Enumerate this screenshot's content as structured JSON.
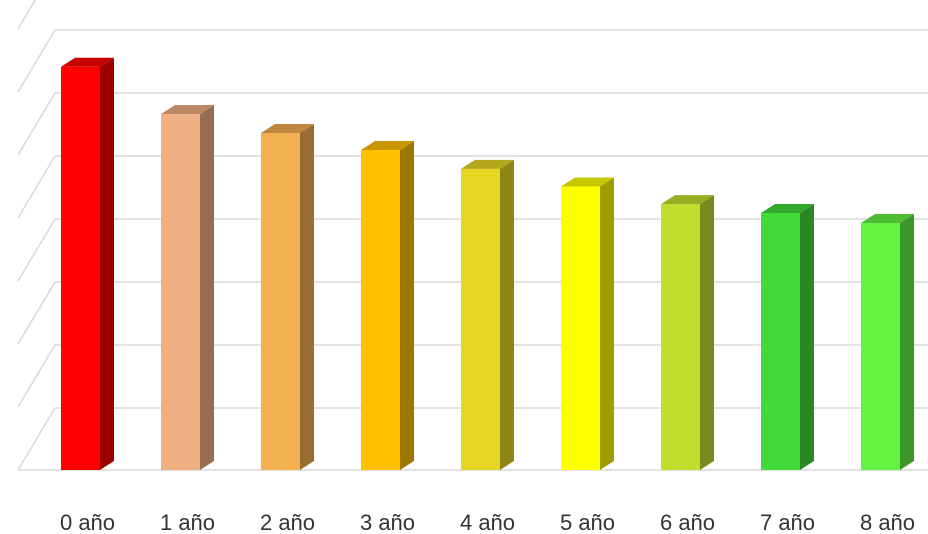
{
  "chart_data": {
    "type": "bar",
    "title": "",
    "xlabel": "",
    "ylabel": "",
    "categories": [
      "0 año",
      "1 año",
      "2 año",
      "3 año",
      "4 año",
      "5 año",
      "6 año",
      "7 año",
      "8 año"
    ],
    "values": [
      6.4,
      5.65,
      5.35,
      5.08,
      4.78,
      4.5,
      4.22,
      4.08,
      3.92
    ],
    "ylim": [
      0,
      7
    ],
    "grid": true,
    "legend": "none",
    "bar_colors": [
      "#ff0000",
      "#f0b083",
      "#f3b050",
      "#ffc000",
      "#e6d624",
      "#ffff00",
      "#c2de2c",
      "#42d93a",
      "#63f242"
    ],
    "gridline_color": "#d9d9d9"
  }
}
